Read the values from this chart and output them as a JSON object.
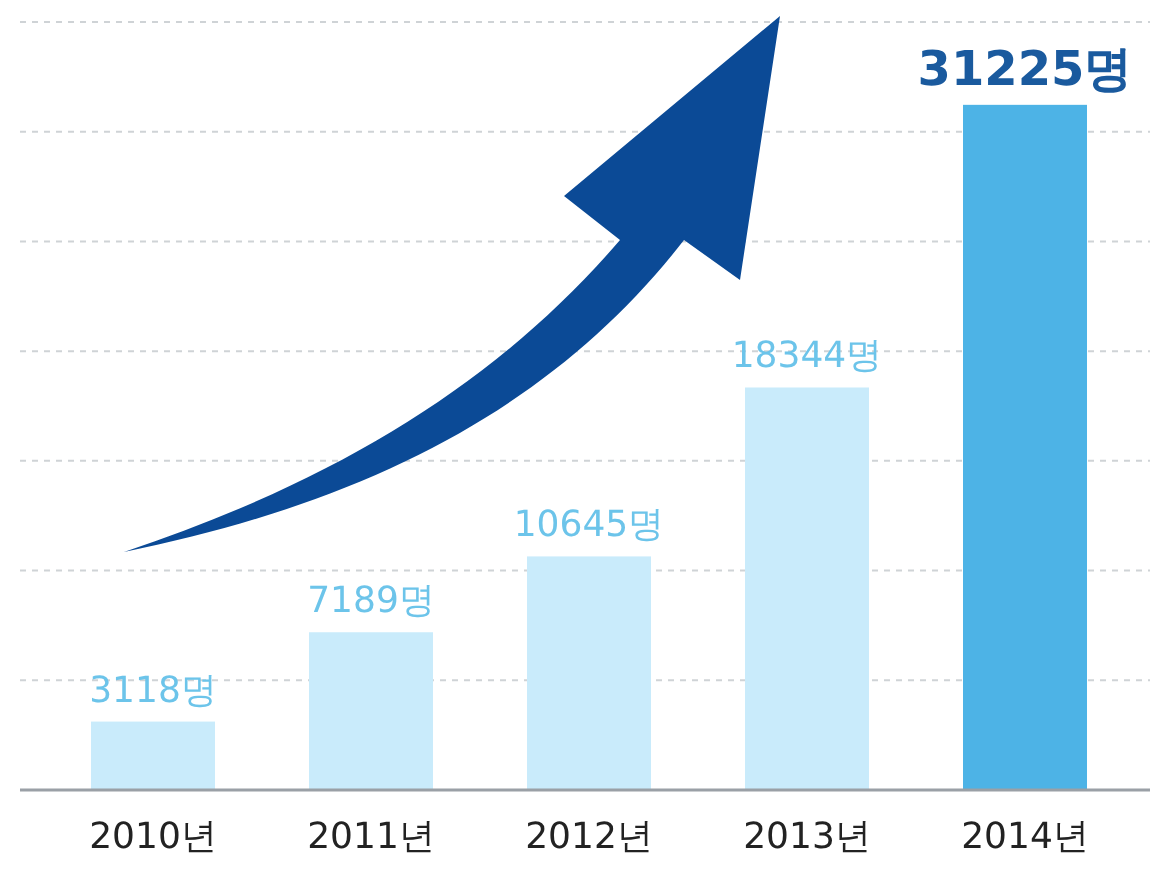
{
  "chart_data": {
    "type": "bar",
    "categories": [
      "2010년",
      "2011년",
      "2012년",
      "2013년",
      "2014년"
    ],
    "values": [
      3118,
      7189,
      10645,
      18344,
      31225
    ],
    "value_labels": [
      "3118명",
      "7189명",
      "10645명",
      "18344명",
      "31225명"
    ],
    "colors": [
      "#c9ebfb",
      "#c9ebfb",
      "#c9ebfb",
      "#c9ebfb",
      "#4db3e6"
    ],
    "ylim": [
      0,
      35000
    ],
    "yticks": [
      {
        "value": 0,
        "label": null
      },
      {
        "value": 5000,
        "label": null
      },
      {
        "value": 10000,
        "label": null
      },
      {
        "value": 15000,
        "label": null
      },
      {
        "value": 20000,
        "label": null
      },
      {
        "value": 25000,
        "label": null
      },
      {
        "value": 30000,
        "label": null
      },
      {
        "value": 35000,
        "label": null
      }
    ],
    "grid": "y",
    "tick_labels": "x"
  }
}
